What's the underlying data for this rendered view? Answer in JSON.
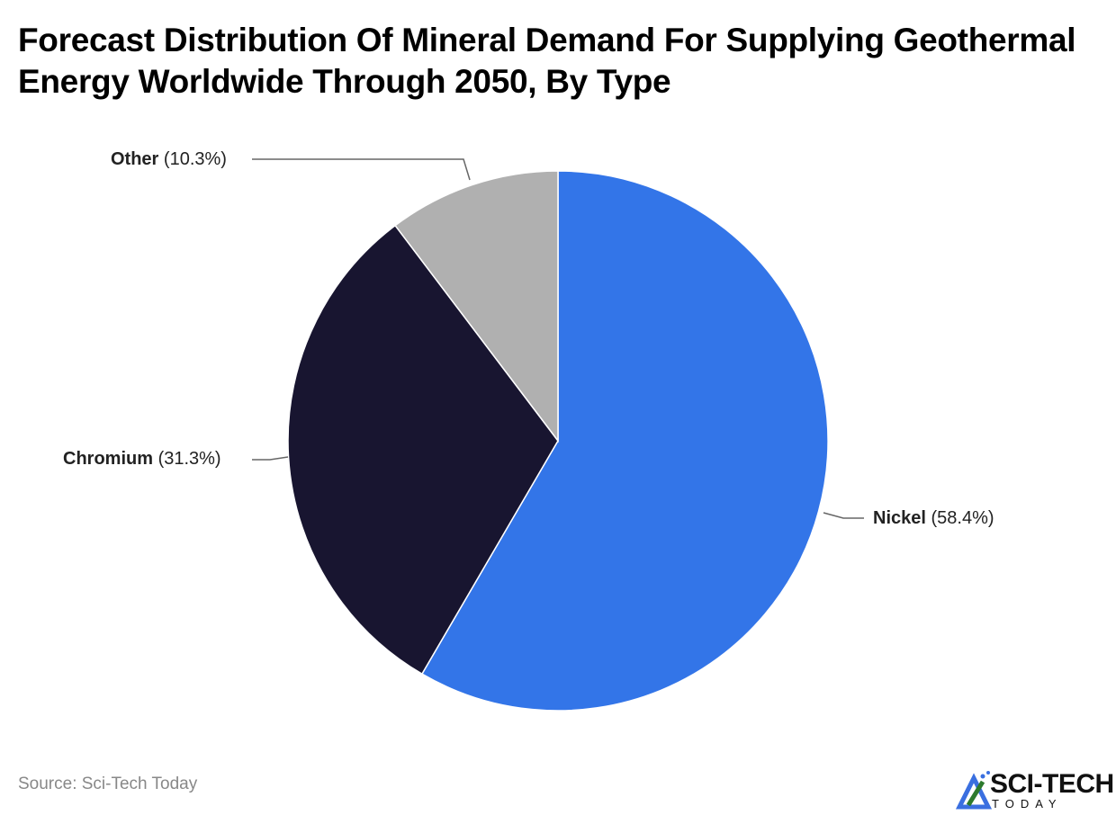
{
  "chart_data": {
    "type": "pie",
    "title": "Forecast Distribution Of Mineral Demand For Supplying Geothermal Energy Worldwide Through 2050, By Type",
    "slices": [
      {
        "label": "Nickel",
        "value": 58.4,
        "display": "(58.4%)",
        "color": "#3375e8"
      },
      {
        "label": "Chromium",
        "value": 31.3,
        "display": "(31.3%)",
        "color": "#181530"
      },
      {
        "label": "Other",
        "value": 10.3,
        "display": "(10.3%)",
        "color": "#b0b0b0"
      }
    ],
    "start_angle": "12 o'clock",
    "direction": "clockwise",
    "legend": "none (direct labels with leader lines)"
  },
  "source": "Source: Sci-Tech Today",
  "logo": {
    "line1": "SCI-TECH",
    "line2": "TODAY"
  }
}
